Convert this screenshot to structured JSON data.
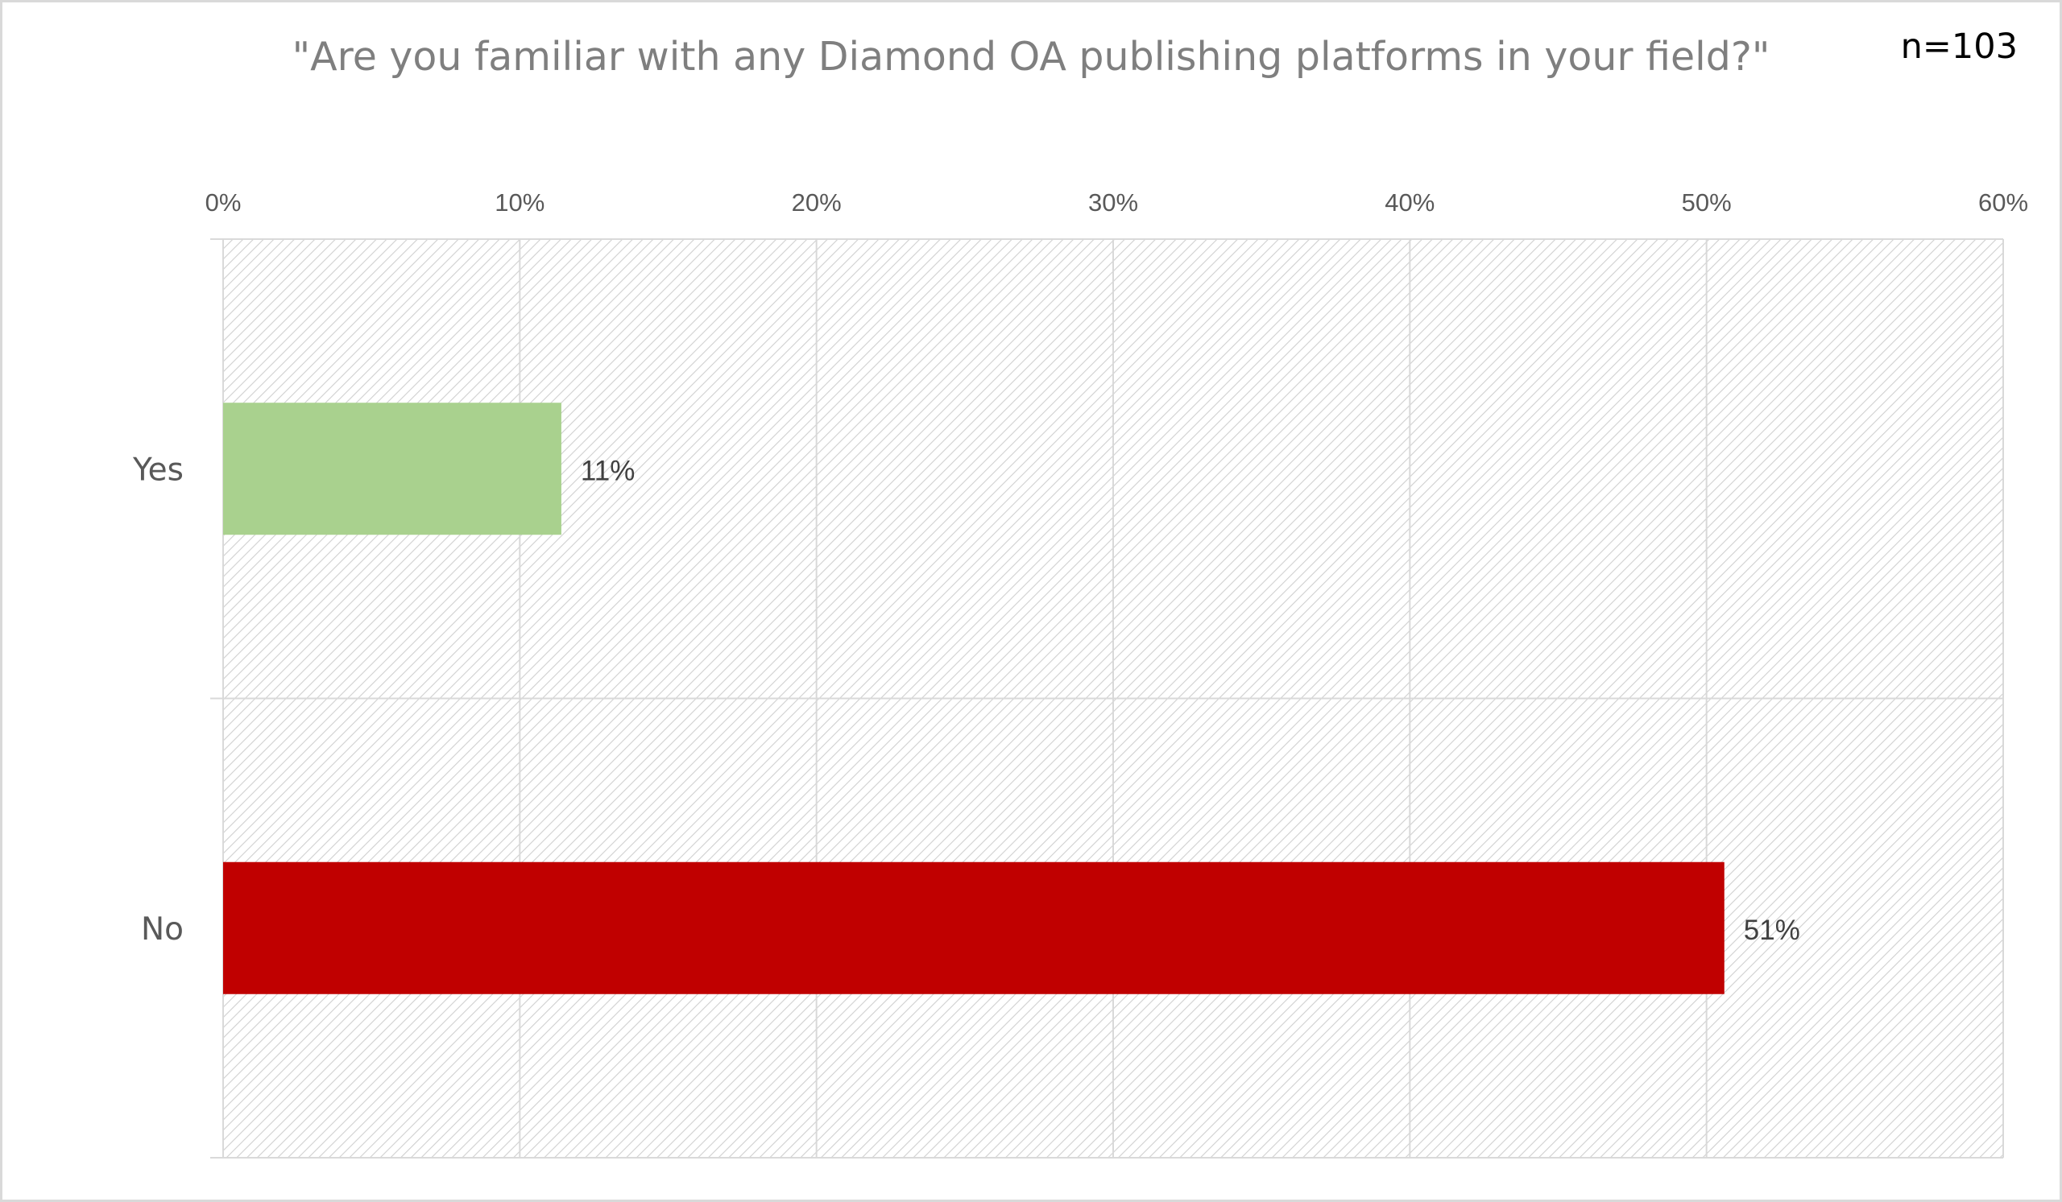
{
  "chart_data": {
    "type": "bar",
    "orientation": "horizontal",
    "title": "\"Are you familiar with any Diamond OA publishing platforms in your field?\"",
    "annotation": "n=103",
    "categories": [
      "Yes",
      "No"
    ],
    "values": [
      11.4,
      50.6
    ],
    "data_labels": [
      "11%",
      "51%"
    ],
    "bar_colors": [
      "#a9d18e",
      "#c00000"
    ],
    "xlim": [
      0,
      60
    ],
    "x_ticks": [
      0,
      10,
      20,
      30,
      40,
      50,
      60
    ],
    "x_tick_labels": [
      "0%",
      "10%",
      "20%",
      "30%",
      "40%",
      "50%",
      "60%"
    ],
    "x_axis_position": "top",
    "grid": true,
    "plot_background": "hatched",
    "legend": "none"
  }
}
